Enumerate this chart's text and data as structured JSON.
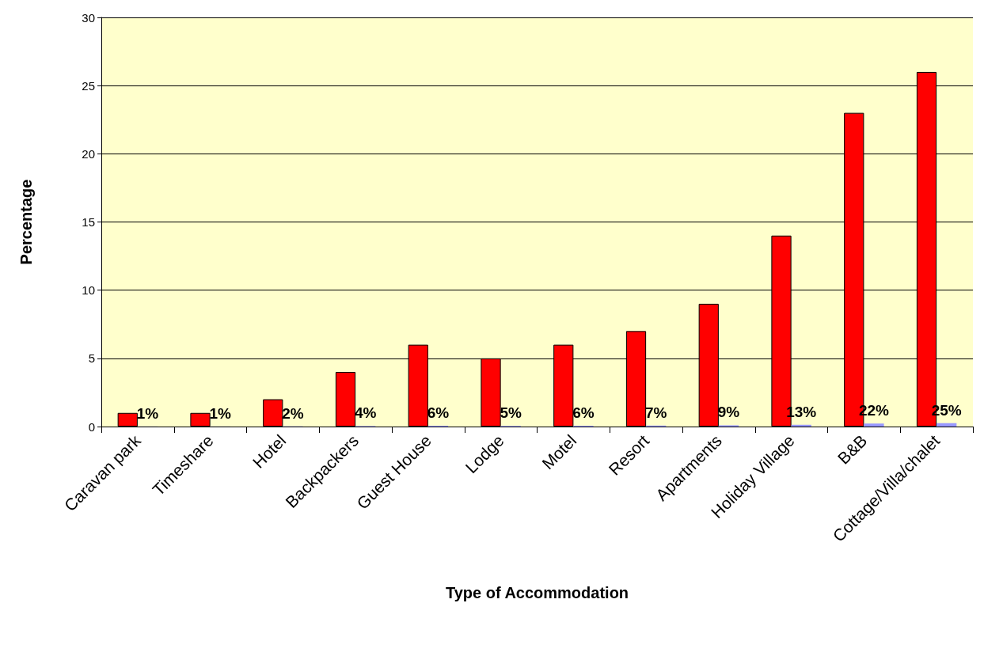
{
  "chart_data": {
    "type": "bar",
    "xlabel": "Type of Accommodation",
    "ylabel": "Percentage",
    "categories": [
      "Caravan park",
      "Timeshare",
      "Hotel",
      "Backpackers",
      "Guest House",
      "Lodge",
      "Motel",
      "Resort",
      "Apartments",
      "Holiday Village",
      "B&B",
      "Cottage/Villa/chalet"
    ],
    "series": [
      {
        "color": "#ff0000",
        "values": [
          1,
          1,
          2,
          4,
          6,
          5,
          6,
          7,
          9,
          14,
          23,
          26
        ]
      },
      {
        "color": "#9999ff",
        "values": [
          0.01,
          0.01,
          0.02,
          0.04,
          0.06,
          0.05,
          0.06,
          0.07,
          0.09,
          0.13,
          0.22,
          0.25
        ],
        "value_labels": [
          "1%",
          "1%",
          "2%",
          "4%",
          "6%",
          "5%",
          "6%",
          "7%",
          "9%",
          "13%",
          "22%",
          "25%"
        ]
      }
    ],
    "ylim": [
      0,
      30
    ],
    "yticks": [
      0,
      5,
      10,
      15,
      20,
      25,
      30
    ],
    "grid": "y"
  }
}
